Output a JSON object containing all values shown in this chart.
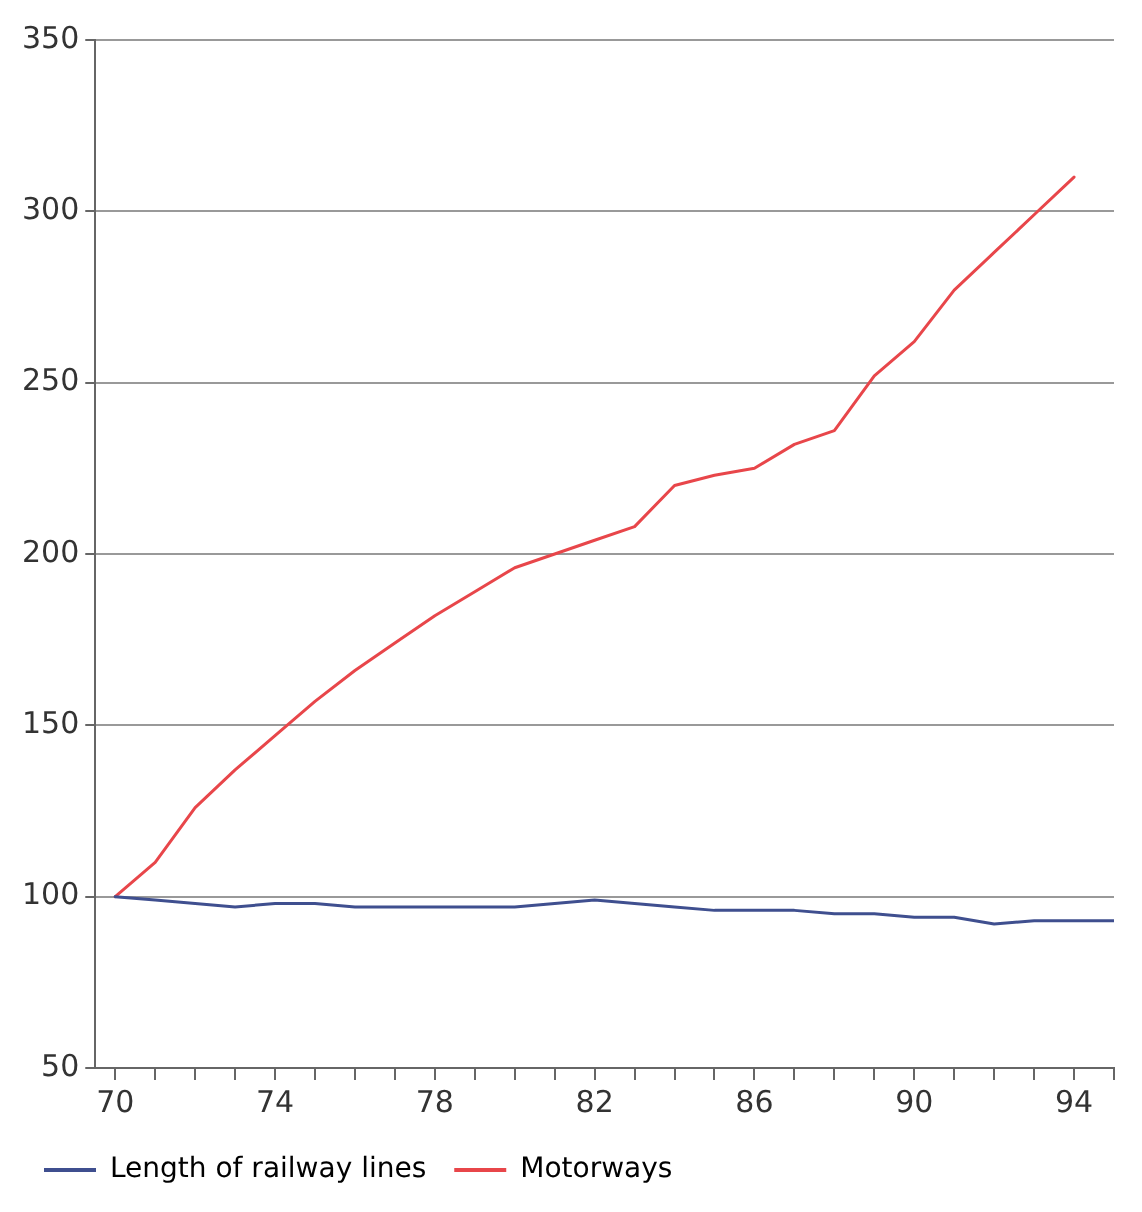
{
  "chart_data": {
    "type": "line",
    "xlim": [
      69.5,
      95
    ],
    "ylim": [
      50,
      350
    ],
    "yticks": [
      50,
      100,
      150,
      200,
      250,
      300,
      350
    ],
    "xticks": [
      {
        "value": 70,
        "label": "70"
      },
      {
        "value": 71,
        "label": null
      },
      {
        "value": 72,
        "label": null
      },
      {
        "value": 73,
        "label": null
      },
      {
        "value": 74,
        "label": "74"
      },
      {
        "value": 75,
        "label": null
      },
      {
        "value": 76,
        "label": null
      },
      {
        "value": 77,
        "label": null
      },
      {
        "value": 78,
        "label": "78"
      },
      {
        "value": 79,
        "label": null
      },
      {
        "value": 80,
        "label": null
      },
      {
        "value": 81,
        "label": null
      },
      {
        "value": 82,
        "label": "82"
      },
      {
        "value": 83,
        "label": null
      },
      {
        "value": 84,
        "label": null
      },
      {
        "value": 85,
        "label": null
      },
      {
        "value": 86,
        "label": "86"
      },
      {
        "value": 87,
        "label": null
      },
      {
        "value": 88,
        "label": null
      },
      {
        "value": 89,
        "label": null
      },
      {
        "value": 90,
        "label": "90"
      },
      {
        "value": 91,
        "label": null
      },
      {
        "value": 92,
        "label": null
      },
      {
        "value": 93,
        "label": null
      },
      {
        "value": 94,
        "label": "94"
      },
      {
        "value": 95,
        "label": null
      }
    ],
    "series": [
      {
        "name": "Length of railway lines",
        "color": "#3f4f8f",
        "x": [
          70,
          71,
          72,
          73,
          74,
          75,
          76,
          77,
          78,
          79,
          80,
          81,
          82,
          83,
          84,
          85,
          86,
          87,
          88,
          89,
          90,
          91,
          92,
          93,
          94,
          95
        ],
        "values": [
          100,
          99,
          98,
          97,
          98,
          98,
          97,
          97,
          97,
          97,
          97,
          98,
          99,
          98,
          97,
          96,
          96,
          96,
          95,
          95,
          94,
          94,
          92,
          93,
          93,
          93
        ]
      },
      {
        "name": "Motorways",
        "color": "#e8464a",
        "x": [
          70,
          71,
          72,
          73,
          74,
          75,
          76,
          77,
          78,
          79,
          80,
          81,
          82,
          83,
          84,
          85,
          86,
          87,
          88,
          89,
          90,
          91,
          92,
          93,
          94
        ],
        "values": [
          100,
          110,
          126,
          137,
          147,
          157,
          166,
          174,
          182,
          189,
          196,
          200,
          204,
          208,
          220,
          223,
          225,
          232,
          236,
          252,
          262,
          277,
          288,
          299,
          310
        ]
      }
    ],
    "grid": "y",
    "legend": "bottom",
    "line_style": "solid",
    "marker": "none"
  }
}
